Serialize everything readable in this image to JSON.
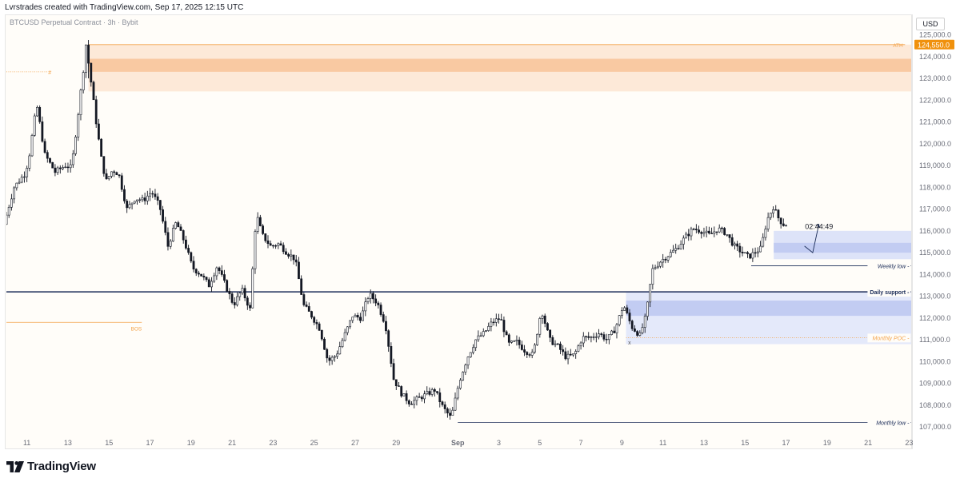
{
  "header": {
    "created_text": "Lvrstrades created with TradingView.com, Sep 17, 2025 12:15 UTC"
  },
  "symbol": "BTCUSD Perpetual Contract · 3h · Bybit",
  "currency": "USD",
  "footer": {
    "logo_text": "TradingView"
  },
  "colors": {
    "candle": "#131722",
    "orange": "#f7a35c",
    "blue": "#aab6ef",
    "navy": "#1a2b57"
  },
  "chart_data": {
    "type": "candlestick",
    "y_ticks": [
      125000,
      124000,
      123000,
      122000,
      121000,
      120000,
      119000,
      118000,
      117000,
      116000,
      115000,
      114000,
      113000,
      112000,
      111000,
      110000,
      109000,
      108000,
      107000
    ],
    "y_tick_labels": [
      "125,000.0",
      "124,000.0",
      "123,000.0",
      "122,000.0",
      "121,000.0",
      "120,000.0",
      "119,000.0",
      "118,000.0",
      "117,000.0",
      "116,000.0",
      "115,000.0",
      "114,000.0",
      "113,000.0",
      "112,000.0",
      "111,000.0",
      "110,000.0",
      "109,000.0",
      "108,000.0",
      "107,000.0"
    ],
    "ylim": [
      106600,
      125900
    ],
    "x_ticks": [
      {
        "label": "11",
        "day": 11
      },
      {
        "label": "13",
        "day": 13
      },
      {
        "label": "15",
        "day": 15
      },
      {
        "label": "17",
        "day": 17
      },
      {
        "label": "19",
        "day": 19
      },
      {
        "label": "21",
        "day": 21
      },
      {
        "label": "23",
        "day": 23
      },
      {
        "label": "25",
        "day": 25
      },
      {
        "label": "27",
        "day": 27
      },
      {
        "label": "29",
        "day": 29
      },
      {
        "label": "Sep",
        "day": 32
      },
      {
        "label": "3",
        "day": 34
      },
      {
        "label": "5",
        "day": 36
      },
      {
        "label": "7",
        "day": 38
      },
      {
        "label": "9",
        "day": 40
      },
      {
        "label": "11",
        "day": 42
      },
      {
        "label": "13",
        "day": 44
      },
      {
        "label": "15",
        "day": 46
      },
      {
        "label": "17",
        "day": 48
      },
      {
        "label": "19",
        "day": 50
      },
      {
        "label": "21",
        "day": 52
      },
      {
        "label": "23",
        "day": 54
      }
    ],
    "xlim": [
      10,
      54.1
    ],
    "price_path": [
      [
        10.0,
        116300
      ],
      [
        10.5,
        118000
      ],
      [
        11.0,
        118600
      ],
      [
        11.2,
        119200
      ],
      [
        11.6,
        121800
      ],
      [
        12.0,
        119500
      ],
      [
        12.5,
        118700
      ],
      [
        13.0,
        119000
      ],
      [
        13.3,
        118900
      ],
      [
        13.6,
        121200
      ],
      [
        13.9,
        123600
      ],
      [
        14.0,
        124550
      ],
      [
        14.2,
        123200
      ],
      [
        14.5,
        121000
      ],
      [
        14.8,
        119000
      ],
      [
        15.0,
        118300
      ],
      [
        15.3,
        118800
      ],
      [
        15.6,
        118600
      ],
      [
        16.0,
        117000
      ],
      [
        16.4,
        117500
      ],
      [
        16.8,
        117400
      ],
      [
        17.2,
        117800
      ],
      [
        17.6,
        117100
      ],
      [
        18.0,
        115300
      ],
      [
        18.4,
        116400
      ],
      [
        18.8,
        115500
      ],
      [
        19.2,
        114300
      ],
      [
        19.6,
        114000
      ],
      [
        20.0,
        113500
      ],
      [
        20.4,
        114400
      ],
      [
        20.8,
        113500
      ],
      [
        21.2,
        112600
      ],
      [
        21.6,
        113300
      ],
      [
        22.0,
        112400
      ],
      [
        22.3,
        116800
      ],
      [
        22.6,
        115800
      ],
      [
        23.0,
        115300
      ],
      [
        23.4,
        115400
      ],
      [
        23.8,
        115000
      ],
      [
        24.2,
        114700
      ],
      [
        24.6,
        112600
      ],
      [
        25.0,
        112100
      ],
      [
        25.4,
        111500
      ],
      [
        25.8,
        110000
      ],
      [
        26.2,
        110300
      ],
      [
        26.6,
        111200
      ],
      [
        27.0,
        112100
      ],
      [
        27.4,
        112000
      ],
      [
        27.8,
        113100
      ],
      [
        28.2,
        112700
      ],
      [
        28.6,
        111700
      ],
      [
        29.0,
        109200
      ],
      [
        29.4,
        108500
      ],
      [
        29.8,
        108100
      ],
      [
        30.2,
        108300
      ],
      [
        30.6,
        108500
      ],
      [
        31.0,
        108700
      ],
      [
        31.4,
        107900
      ],
      [
        31.8,
        107400
      ],
      [
        32.2,
        109100
      ],
      [
        32.6,
        110200
      ],
      [
        33.0,
        111000
      ],
      [
        33.4,
        111300
      ],
      [
        33.8,
        111800
      ],
      [
        34.2,
        112000
      ],
      [
        34.6,
        110800
      ],
      [
        35.0,
        110900
      ],
      [
        35.4,
        110500
      ],
      [
        35.8,
        110300
      ],
      [
        36.2,
        112400
      ],
      [
        36.6,
        111000
      ],
      [
        37.0,
        110700
      ],
      [
        37.4,
        110200
      ],
      [
        37.8,
        110300
      ],
      [
        38.2,
        111100
      ],
      [
        38.6,
        111100
      ],
      [
        39.0,
        111300
      ],
      [
        39.4,
        111000
      ],
      [
        39.8,
        111500
      ],
      [
        40.2,
        112600
      ],
      [
        40.6,
        111600
      ],
      [
        41.0,
        111200
      ],
      [
        41.3,
        112100
      ],
      [
        41.6,
        114200
      ],
      [
        42.0,
        114600
      ],
      [
        42.4,
        114900
      ],
      [
        42.8,
        115200
      ],
      [
        43.2,
        115700
      ],
      [
        43.6,
        116100
      ],
      [
        44.0,
        116000
      ],
      [
        44.4,
        115800
      ],
      [
        44.8,
        116100
      ],
      [
        45.2,
        115900
      ],
      [
        45.6,
        115300
      ],
      [
        46.0,
        115000
      ],
      [
        46.3,
        114800
      ],
      [
        46.6,
        115000
      ],
      [
        46.9,
        115200
      ],
      [
        47.2,
        116500
      ],
      [
        47.5,
        117100
      ],
      [
        47.8,
        116500
      ],
      [
        48.0,
        116300
      ]
    ],
    "zones": [
      {
        "name": "ath-supply-outer",
        "y1": 122400,
        "y2": 124550,
        "color": "#fde9d8",
        "from_day": 14.0,
        "to_day": 54.1
      },
      {
        "name": "ath-supply-inner",
        "y1": 123300,
        "y2": 123900,
        "color": "#f9c9a2",
        "from_day": 14.0,
        "to_day": 54.1
      },
      {
        "name": "demand-zone-upper",
        "y1": 114700,
        "y2": 116000,
        "color": "#dde3f8",
        "from_day": 47.4,
        "to_day": 54.1
      },
      {
        "name": "demand-zone-upper-inner",
        "y1": 115000,
        "y2": 115450,
        "color": "#c2ccf2",
        "from_day": 47.4,
        "to_day": 54.1
      },
      {
        "name": "demand-zone-lower",
        "y1": 110800,
        "y2": 113200,
        "color": "#e4e9fa",
        "from_day": 40.2,
        "to_day": 54.1
      },
      {
        "name": "demand-zone-lower-inner",
        "y1": 112100,
        "y2": 112800,
        "color": "#c2ccf2",
        "from_day": 40.2,
        "to_day": 54.1
      }
    ],
    "levels": [
      {
        "name": "ath",
        "label": "ATH",
        "value": 124550,
        "color": "#f3a34a",
        "from_day": 14.0,
        "to_day": 53.8
      },
      {
        "name": "daily-support",
        "label": "Daily support",
        "value": 113200,
        "color": "#1a2b57",
        "from_day": 10.0,
        "to_day": 54.1
      },
      {
        "name": "weekly-low",
        "label": "Weekly low",
        "value": 114400,
        "color": "#1a2b57",
        "from_day": 46.3,
        "to_day": 54.1
      },
      {
        "name": "monthly-poc",
        "label": "Monthly POC",
        "value": 111100,
        "color": "#f3a34a",
        "from_day": 40.2,
        "to_day": 54.1
      },
      {
        "name": "monthly-low",
        "label": "Monthly low",
        "value": 107200,
        "color": "#1a2b57",
        "from_day": 32.0,
        "to_day": 54.1
      },
      {
        "name": "bos",
        "label": "BOS",
        "value": 111800,
        "color": "#f3a34a",
        "from_day": 10.0,
        "to_day": 16.6
      }
    ],
    "small_marks": [
      {
        "name": "hash-mark",
        "label": "#",
        "day": 12.0,
        "value": 123300
      },
      {
        "name": "x-mark",
        "label": "x",
        "day": 40.3,
        "value": 110900
      }
    ],
    "arrow_path": [
      [
        48.9,
        115300
      ],
      [
        49.3,
        115000
      ],
      [
        49.6,
        116300
      ]
    ],
    "price_label": "124,550.0",
    "countdown_label": "02:44:49",
    "countdown_value": 116200,
    "title": "",
    "xlabel": "",
    "ylabel": ""
  }
}
